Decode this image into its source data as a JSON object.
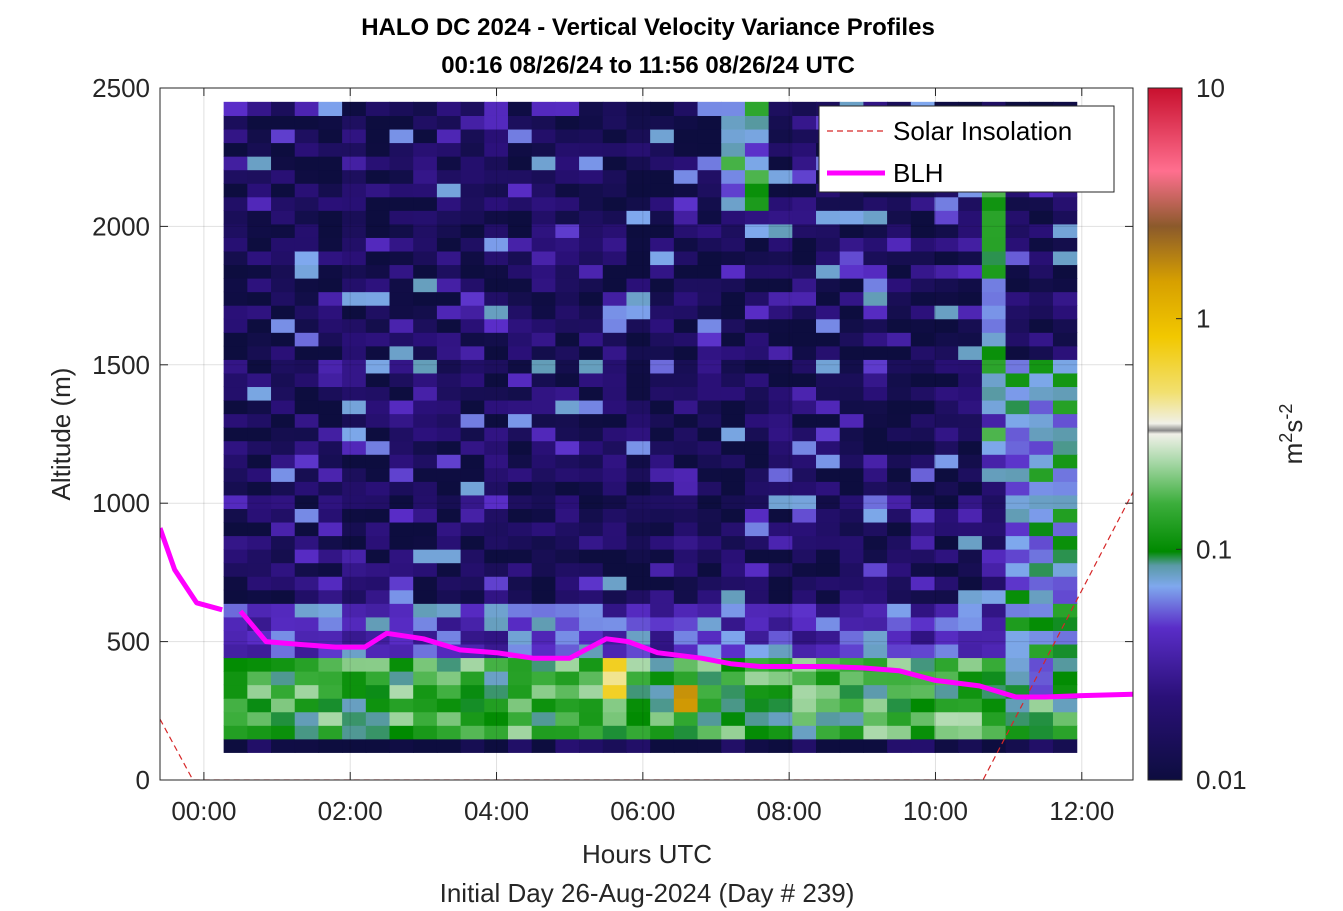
{
  "chart_data": {
    "type": "heatmap",
    "title_line1": "HALO DC 2024 - Vertical Velocity Variance Profiles",
    "title_line2": "00:16 08/26/24 to 11:56 08/26/24  UTC",
    "xlabel": "Hours UTC",
    "xlabel2": "Initial Day 26-Aug-2024 (Day # 239)",
    "ylabel": "Altitude (m)",
    "colorbar_label_base": "m",
    "colorbar_label_sup1": "2",
    "colorbar_label_mid": "s",
    "colorbar_label_sup2": "-2",
    "xlim_hours": [
      -0.6,
      12.7
    ],
    "ylim": [
      0,
      2500
    ],
    "x_ticks": [
      0,
      2,
      4,
      6,
      8,
      10,
      12
    ],
    "x_tick_labels": [
      "00:00",
      "02:00",
      "04:00",
      "06:00",
      "08:00",
      "10:00",
      "12:00"
    ],
    "y_ticks": [
      0,
      500,
      1000,
      1500,
      2000,
      2500
    ],
    "y_tick_labels": [
      "0",
      "500",
      "1000",
      "1500",
      "2000",
      "2500"
    ],
    "color_scale": "log",
    "clim": [
      0.01,
      10
    ],
    "colorbar_ticks": [
      0.01,
      0.1,
      1,
      10
    ],
    "colorbar_tick_labels": [
      "0.01",
      "0.1",
      "1",
      "10"
    ],
    "grid": true,
    "legend_position": "top-right",
    "data_time_range_hours": [
      0.27,
      11.93
    ],
    "data_altitude_range": [
      100,
      2450
    ],
    "series": [
      {
        "name": "Solar Insolation",
        "style": "dashed",
        "color": "#d62728",
        "x": [
          -0.6,
          -0.15,
          10.65,
          12.7
        ],
        "y": [
          220,
          0,
          0,
          1040
        ]
      },
      {
        "name": "BLH",
        "style": "solid",
        "color": "#ff00ff",
        "segments": [
          {
            "x": [
              -0.6,
              -0.4,
              -0.1,
              0.25
            ],
            "y": [
              910,
              760,
              640,
              615
            ]
          },
          {
            "x": [
              0.5,
              0.85,
              1.3,
              1.8,
              2.2,
              2.5,
              3.0,
              3.5,
              4.0,
              4.5,
              5.0,
              5.5,
              5.8,
              6.2,
              6.8,
              7.2,
              7.6,
              8.0,
              8.5,
              9.0,
              9.5,
              10.0,
              10.6,
              11.1,
              11.5,
              12.0,
              12.7
            ],
            "y": [
              610,
              500,
              490,
              480,
              480,
              530,
              510,
              470,
              460,
              440,
              440,
              510,
              500,
              460,
              440,
              420,
              410,
              410,
              410,
              405,
              395,
              360,
              340,
              300,
              300,
              305,
              310
            ]
          }
        ]
      }
    ],
    "heatmap_profile": {
      "description_levels": "bands of log10 variance by altitude (data units)",
      "bands": [
        {
          "alt": [
            100,
            130
          ],
          "log10": -1.95
        },
        {
          "alt": [
            130,
            420
          ],
          "log10": -0.85
        },
        {
          "alt": [
            420,
            650
          ],
          "log10": -1.35
        },
        {
          "alt": [
            650,
            2450
          ],
          "log10": -1.85
        }
      ],
      "hotspots": [
        {
          "t": [
            5.3,
            5.8
          ],
          "alt": [
            300,
            430
          ],
          "log10": -0.3
        },
        {
          "t": [
            6.3,
            6.6
          ],
          "alt": [
            230,
            350
          ],
          "log10": 0.05
        },
        {
          "t": [
            11.1,
            11.9
          ],
          "alt": [
            300,
            1500
          ],
          "log10": -1.1
        },
        {
          "t": [
            10.5,
            10.9
          ],
          "alt": [
            1100,
            2200
          ],
          "log10": -1.0
        },
        {
          "t": [
            7.1,
            7.6
          ],
          "alt": [
            2050,
            2450
          ],
          "log10": -1.0
        }
      ]
    }
  }
}
